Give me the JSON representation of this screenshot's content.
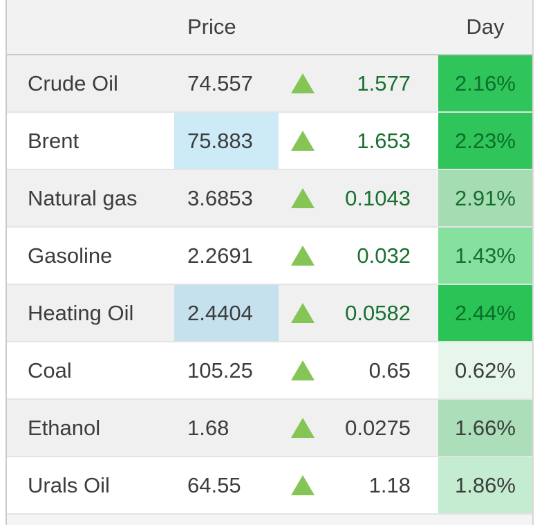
{
  "labels": {
    "price_header": "Price",
    "day_header": "Day"
  },
  "colors": {
    "arrow_up": "#85c556",
    "stripe_bg": "#f0f0f0",
    "header_bg": "#f2f2f2",
    "text": "#3d3d3d",
    "change_green": "#17702f",
    "day_bright_green": "#2fc55b",
    "row_border": "#e4e4e4",
    "table_border": "#c9c9c9",
    "price_highlight_blue": "#cdeaf7"
  },
  "chart_data": {
    "type": "table",
    "columns": [
      "",
      "Price",
      "direction",
      "change",
      "Day"
    ],
    "rows": [
      {
        "name": "Crude Oil",
        "price": "74.557",
        "change": "1.577",
        "day_percent": "2.16%",
        "striped": true,
        "price_highlight": null,
        "day_bg": "#2fc55b",
        "day_color": "#0c6e2b",
        "change_color": "#17702f"
      },
      {
        "name": "Brent",
        "price": "75.883",
        "change": "1.653",
        "day_percent": "2.23%",
        "striped": false,
        "price_highlight": "#cdeaf7",
        "day_bg": "#2fc55b",
        "day_color": "#0c6e2b",
        "change_color": "#17702f"
      },
      {
        "name": "Natural gas",
        "price": "3.6853",
        "change": "0.1043",
        "day_percent": "2.91%",
        "striped": true,
        "price_highlight": null,
        "day_bg": "#a5dcb2",
        "day_color": "#156d2e",
        "change_color": "#17702f"
      },
      {
        "name": "Gasoline",
        "price": "2.2691",
        "change": "0.032",
        "day_percent": "1.43%",
        "striped": false,
        "price_highlight": null,
        "day_bg": "#87e19e",
        "day_color": "#156d2e",
        "change_color": "#17702f"
      },
      {
        "name": "Heating Oil",
        "price": "2.4404",
        "change": "0.0582",
        "day_percent": "2.44%",
        "striped": true,
        "price_highlight": "#c5e1ee",
        "day_bg": "#29c455",
        "day_color": "#0c6e2b",
        "change_color": "#17702f"
      },
      {
        "name": "Coal",
        "price": "105.25",
        "change": "0.65",
        "day_percent": "0.62%",
        "striped": false,
        "price_highlight": null,
        "day_bg": "#e6f6ea",
        "day_color": "#3d3d3d",
        "change_color": "#3d3d3d"
      },
      {
        "name": "Ethanol",
        "price": "1.68",
        "change": "0.0275",
        "day_percent": "1.66%",
        "striped": true,
        "price_highlight": null,
        "day_bg": "#abdeb9",
        "day_color": "#3d3d3d",
        "change_color": "#3d3d3d"
      },
      {
        "name": "Urals Oil",
        "price": "64.55",
        "change": "1.18",
        "day_percent": "1.86%",
        "striped": false,
        "price_highlight": null,
        "day_bg": "#c3ecd0",
        "day_color": "#3d3d3d",
        "change_color": "#3d3d3d"
      }
    ]
  }
}
